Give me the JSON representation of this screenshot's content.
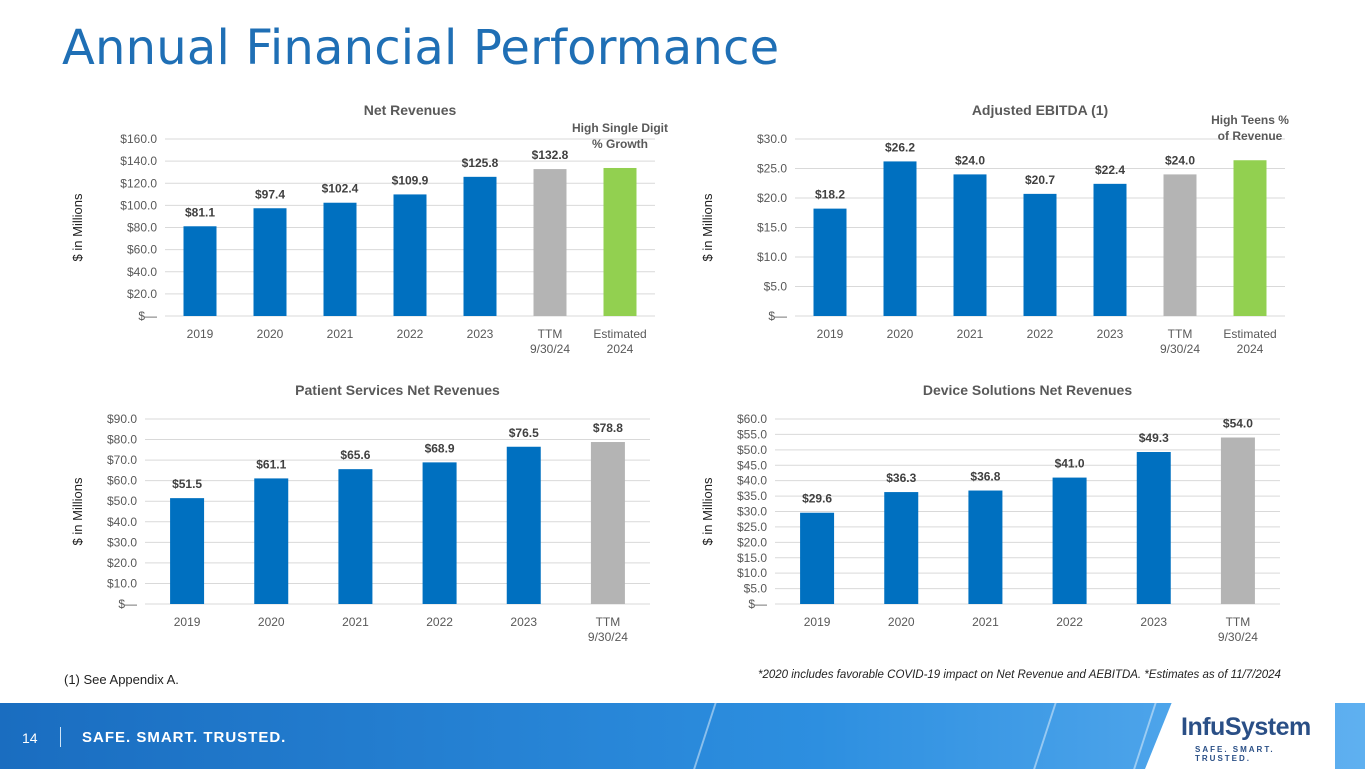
{
  "page": {
    "title": "Annual Financial Performance",
    "footnote_left": "(1) See Appendix A.",
    "footnote_right": "*2020 includes favorable COVID-19 impact on Net Revenue and AEBITDA.   *Estimates as of 11/7/2024",
    "page_number": "14",
    "slogan": "SAFE. SMART. TRUSTED.",
    "logo_text": "InfuSystem",
    "logo_tagline": "SAFE. SMART. TRUSTED.",
    "colors": {
      "title": "#1f6fb5",
      "bar_actual": "#0070c0",
      "bar_ttm": "#b4b4b4",
      "bar_estimate": "#92d050",
      "grid": "#d9d9d9"
    }
  },
  "chart_data": [
    {
      "id": "net-revenues",
      "type": "bar",
      "title": "Net Revenues",
      "ylabel": "$ in Millions",
      "ylim": [
        0,
        160
      ],
      "yticks": [
        0,
        20,
        40,
        60,
        80,
        100,
        120,
        140,
        160
      ],
      "ytick_labels": [
        "$—",
        "$20.0",
        "$40.0",
        "$60.0",
        "$80.0",
        "$100.0",
        "$120.0",
        "$140.0",
        "$160.0"
      ],
      "categories": [
        [
          "2019"
        ],
        [
          "2020"
        ],
        [
          "2021"
        ],
        [
          "2022"
        ],
        [
          "2023"
        ],
        [
          "TTM",
          "9/30/24"
        ],
        [
          "Estimated",
          "2024"
        ]
      ],
      "values": [
        81.1,
        97.4,
        102.4,
        109.9,
        125.8,
        132.8,
        133.8
      ],
      "data_labels": [
        "$81.1",
        "$97.4",
        "$102.4",
        "$109.9",
        "$125.8",
        "$132.8",
        ""
      ],
      "bar_kinds": [
        "actual",
        "actual",
        "actual",
        "actual",
        "actual",
        "ttm",
        "estimate"
      ],
      "annotation": [
        "High Single Digit",
        "% Growth"
      ]
    },
    {
      "id": "adjusted-ebitda",
      "type": "bar",
      "title": "Adjusted EBITDA (1)",
      "ylabel": "$ in Millions",
      "ylim": [
        0,
        30
      ],
      "yticks": [
        0,
        5,
        10,
        15,
        20,
        25,
        30
      ],
      "ytick_labels": [
        "$—",
        "$5.0",
        "$10.0",
        "$15.0",
        "$20.0",
        "$25.0",
        "$30.0"
      ],
      "categories": [
        [
          "2019"
        ],
        [
          "2020"
        ],
        [
          "2021"
        ],
        [
          "2022"
        ],
        [
          "2023"
        ],
        [
          "TTM",
          "9/30/24"
        ],
        [
          "Estimated",
          "2024"
        ]
      ],
      "values": [
        18.2,
        26.2,
        24.0,
        20.7,
        22.4,
        24.0,
        26.4
      ],
      "data_labels": [
        "$18.2",
        "$26.2",
        "$24.0",
        "$20.7",
        "$22.4",
        "$24.0",
        ""
      ],
      "bar_kinds": [
        "actual",
        "actual",
        "actual",
        "actual",
        "actual",
        "ttm",
        "estimate"
      ],
      "annotation": [
        "High Teens %",
        "of Revenue"
      ]
    },
    {
      "id": "patient-services",
      "type": "bar",
      "title": "Patient Services Net Revenues",
      "ylabel": "$ in Millions",
      "ylim": [
        0,
        90
      ],
      "yticks": [
        0,
        10,
        20,
        30,
        40,
        50,
        60,
        70,
        80,
        90
      ],
      "ytick_labels": [
        "$—",
        "$10.0",
        "$20.0",
        "$30.0",
        "$40.0",
        "$50.0",
        "$60.0",
        "$70.0",
        "$80.0",
        "$90.0"
      ],
      "categories": [
        [
          "2019"
        ],
        [
          "2020"
        ],
        [
          "2021"
        ],
        [
          "2022"
        ],
        [
          "2023"
        ],
        [
          "TTM",
          "9/30/24"
        ]
      ],
      "values": [
        51.5,
        61.1,
        65.6,
        68.9,
        76.5,
        78.8
      ],
      "data_labels": [
        "$51.5",
        "$61.1",
        "$65.6",
        "$68.9",
        "$76.5",
        "$78.8"
      ],
      "bar_kinds": [
        "actual",
        "actual",
        "actual",
        "actual",
        "actual",
        "ttm"
      ],
      "annotation": []
    },
    {
      "id": "device-solutions",
      "type": "bar",
      "title": "Device Solutions Net Revenues",
      "ylabel": "$ in Millions",
      "ylim": [
        0,
        60
      ],
      "yticks": [
        0,
        5,
        10,
        15,
        20,
        25,
        30,
        35,
        40,
        45,
        50,
        55,
        60
      ],
      "ytick_labels": [
        "$—",
        "$5.0",
        "$10.0",
        "$15.0",
        "$20.0",
        "$25.0",
        "$30.0",
        "$35.0",
        "$40.0",
        "$45.0",
        "$50.0",
        "$55.0",
        "$60.0"
      ],
      "categories": [
        [
          "2019"
        ],
        [
          "2020"
        ],
        [
          "2021"
        ],
        [
          "2022"
        ],
        [
          "2023"
        ],
        [
          "TTM",
          "9/30/24"
        ]
      ],
      "values": [
        29.6,
        36.3,
        36.8,
        41.0,
        49.3,
        54.0
      ],
      "data_labels": [
        "$29.6",
        "$36.3",
        "$36.8",
        "$41.0",
        "$49.3",
        "$54.0"
      ],
      "bar_kinds": [
        "actual",
        "actual",
        "actual",
        "actual",
        "actual",
        "ttm"
      ],
      "annotation": []
    }
  ]
}
